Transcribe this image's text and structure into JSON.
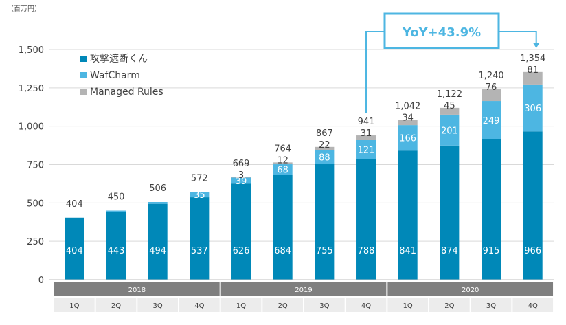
{
  "chart_data": {
    "type": "bar",
    "stacked": true,
    "unit_label": "（百万円）",
    "ylim": [
      0,
      1500
    ],
    "yticks": [
      "0",
      "250",
      "500",
      "750",
      "1,000",
      "1,250",
      "1,500"
    ],
    "ytick_values": [
      0,
      250,
      500,
      750,
      1000,
      1250,
      1500
    ],
    "grid": true,
    "legend_position": "top-left",
    "categories": [
      "1Q",
      "2Q",
      "3Q",
      "4Q",
      "1Q",
      "2Q",
      "3Q",
      "4Q",
      "1Q",
      "2Q",
      "3Q",
      "4Q"
    ],
    "years": [
      {
        "label": "2018",
        "span": 4
      },
      {
        "label": "2019",
        "span": 4
      },
      {
        "label": "2020",
        "span": 4
      }
    ],
    "series": [
      {
        "name": "攻撃遮断くん",
        "color": "#0088b8",
        "values": [
          404,
          443,
          494,
          537,
          626,
          684,
          755,
          788,
          841,
          874,
          915,
          966
        ],
        "labels": [
          "404",
          "443",
          "494",
          "537",
          "626",
          "684",
          "755",
          "788",
          "841",
          "874",
          "915",
          "966"
        ]
      },
      {
        "name": "WafCharm",
        "color": "#4db6e2",
        "values": [
          0,
          7,
          12,
          35,
          39,
          68,
          88,
          121,
          166,
          201,
          249,
          306
        ],
        "labels": [
          "",
          "",
          "",
          "35",
          "39",
          "68",
          "88",
          "121",
          "166",
          "201",
          "249",
          "306"
        ]
      },
      {
        "name": "Managed Rules",
        "color": "#b4b4b4",
        "values": [
          0,
          0,
          0,
          0,
          3,
          12,
          22,
          31,
          34,
          45,
          76,
          81
        ],
        "labels": [
          "",
          "",
          "",
          "",
          "3",
          "12",
          "22",
          "31",
          "34",
          "45",
          "76",
          "81"
        ]
      }
    ],
    "totals": [
      "404",
      "450",
      "506",
      "572",
      "669",
      "764",
      "867",
      "941",
      "1,042",
      "1,122",
      "1,240",
      "1,354"
    ],
    "annotation": {
      "text": "YoY+43.9%",
      "from_index": 7,
      "to_index": 11,
      "color": "#4db6e2"
    }
  }
}
